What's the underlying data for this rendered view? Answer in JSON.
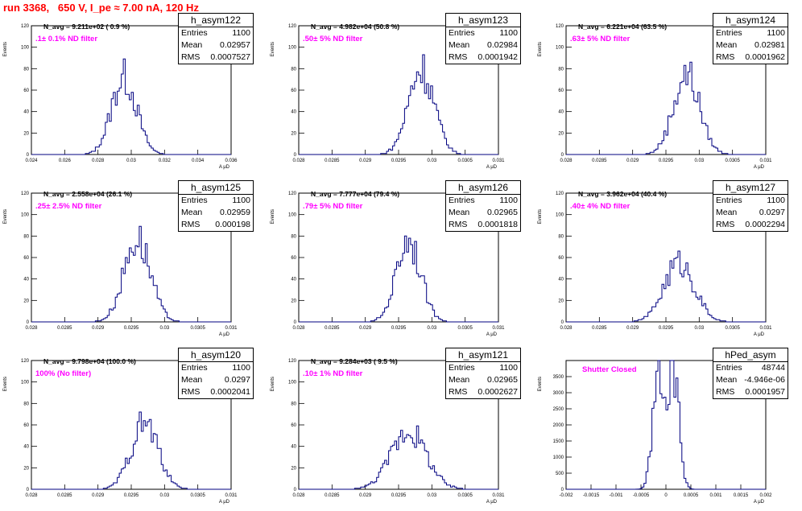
{
  "run_title": "run 3368,   650 V, I_pe ≈ 7.00 nA, 120 Hz",
  "colors": {
    "title": "#ff0000",
    "filter_text": "#ff00ff",
    "hist_line": "#000080"
  },
  "chart_data": [
    {
      "type": "bar",
      "title": "h_asym122",
      "stats": {
        "entries_label": "Entries",
        "entries": "1100",
        "mean_label": "Mean",
        "mean": "0.02957",
        "rms_label": "RMS",
        "rms": "0.0007527"
      },
      "navg_text": "N_avg = 9.211e+02 ( 0.9 %)",
      "filter_text": ".1± 0.1% ND filter",
      "ylabel": "Events",
      "xlabel": "A μD",
      "xlim": [
        0.024,
        0.036
      ],
      "ylim": [
        0,
        120
      ],
      "xticks": [
        "0.024",
        "0.026",
        "0.028",
        "0.03",
        "0.032",
        "0.034",
        "0.036"
      ],
      "yticks": [
        "0",
        "20",
        "40",
        "60",
        "80",
        "100",
        "120"
      ],
      "dist": {
        "mean": 0.02957,
        "sigma": 0.00075,
        "peak": 72
      }
    },
    {
      "type": "bar",
      "title": "h_asym123",
      "stats": {
        "entries_label": "Entries",
        "entries": "1100",
        "mean_label": "Mean",
        "mean": "0.02984",
        "rms_label": "RMS",
        "rms": "0.0001942"
      },
      "navg_text": "N_avg = 4.982e+04 (50.8 %)",
      "filter_text": ".50± 5% ND filter",
      "ylabel": "Events",
      "xlabel": "A μD",
      "xlim": [
        0.028,
        0.031
      ],
      "ylim": [
        0,
        120
      ],
      "xticks": [
        "0.028",
        "0.0285",
        "0.029",
        "0.0295",
        "0.03",
        "0.0305",
        "0.031"
      ],
      "yticks": [
        "0",
        "20",
        "40",
        "60",
        "80",
        "100",
        "120"
      ],
      "dist": {
        "mean": 0.02984,
        "sigma": 0.000194,
        "peak": 80
      }
    },
    {
      "type": "bar",
      "title": "h_asym124",
      "stats": {
        "entries_label": "Entries",
        "entries": "1100",
        "mean_label": "Mean",
        "mean": "0.02981",
        "rms_label": "RMS",
        "rms": "0.0001962"
      },
      "navg_text": "N_avg = 6.221e+04 (63.5 %)",
      "filter_text": ".63± 5% ND filter",
      "ylabel": "Events",
      "xlabel": "A μD",
      "xlim": [
        0.028,
        0.031
      ],
      "ylim": [
        0,
        120
      ],
      "xticks": [
        "0.028",
        "0.0285",
        "0.029",
        "0.0295",
        "0.03",
        "0.0305",
        "0.031"
      ],
      "yticks": [
        "0",
        "20",
        "40",
        "60",
        "80",
        "100",
        "120"
      ],
      "dist": {
        "mean": 0.02981,
        "sigma": 0.000196,
        "peak": 75
      }
    },
    {
      "type": "bar",
      "title": "h_asym125",
      "stats": {
        "entries_label": "Entries",
        "entries": "1100",
        "mean_label": "Mean",
        "mean": "0.02959",
        "rms_label": "RMS",
        "rms": "0.000198"
      },
      "navg_text": "N_avg = 2.558e+04 (26.1 %)",
      "filter_text": ".25± 2.5% ND filter",
      "ylabel": "Events",
      "xlabel": "A μD",
      "xlim": [
        0.028,
        0.031
      ],
      "ylim": [
        0,
        120
      ],
      "xticks": [
        "0.028",
        "0.0285",
        "0.029",
        "0.0295",
        "0.03",
        "0.0305",
        "0.031"
      ],
      "yticks": [
        "0",
        "20",
        "40",
        "60",
        "80",
        "100",
        "120"
      ],
      "dist": {
        "mean": 0.02959,
        "sigma": 0.000198,
        "peak": 78
      }
    },
    {
      "type": "bar",
      "title": "h_asym126",
      "stats": {
        "entries_label": "Entries",
        "entries": "1100",
        "mean_label": "Mean",
        "mean": "0.02965",
        "rms_label": "RMS",
        "rms": "0.0001818"
      },
      "navg_text": "N_avg = 7.777e+04 (79.4 %)",
      "filter_text": ".79± 5% ND filter",
      "ylabel": "Events",
      "xlabel": "A μD",
      "xlim": [
        0.028,
        0.031
      ],
      "ylim": [
        0,
        120
      ],
      "xticks": [
        "0.028",
        "0.0285",
        "0.029",
        "0.0295",
        "0.03",
        "0.0305",
        "0.031"
      ],
      "yticks": [
        "0",
        "20",
        "40",
        "60",
        "80",
        "100",
        "120"
      ],
      "dist": {
        "mean": 0.02965,
        "sigma": 0.000182,
        "peak": 78
      }
    },
    {
      "type": "bar",
      "title": "h_asym127",
      "stats": {
        "entries_label": "Entries",
        "entries": "1100",
        "mean_label": "Mean",
        "mean": "0.0297",
        "rms_label": "RMS",
        "rms": "0.0002294"
      },
      "navg_text": "N_avg = 3.962e+04 (40.4 %)",
      "filter_text": ".40± 4% ND filter",
      "ylabel": "Events",
      "xlabel": "A μD",
      "xlim": [
        0.028,
        0.031
      ],
      "ylim": [
        0,
        120
      ],
      "xticks": [
        "0.028",
        "0.0285",
        "0.029",
        "0.0295",
        "0.03",
        "0.0305",
        "0.031"
      ],
      "yticks": [
        "0",
        "20",
        "40",
        "60",
        "80",
        "100",
        "120"
      ],
      "dist": {
        "mean": 0.0297,
        "sigma": 0.000229,
        "peak": 55
      }
    },
    {
      "type": "bar",
      "title": "h_asym120",
      "stats": {
        "entries_label": "Entries",
        "entries": "1100",
        "mean_label": "Mean",
        "mean": "0.0297",
        "rms_label": "RMS",
        "rms": "0.0002041"
      },
      "navg_text": "N_avg = 9.798e+04 (100.0 %)",
      "filter_text": "100% (No filter)",
      "ylabel": "Events",
      "xlabel": "A μD",
      "xlim": [
        0.028,
        0.031
      ],
      "ylim": [
        0,
        120
      ],
      "xticks": [
        "0.028",
        "0.0285",
        "0.029",
        "0.0295",
        "0.03",
        "0.0305",
        "0.031"
      ],
      "yticks": [
        "0",
        "20",
        "40",
        "60",
        "80",
        "100",
        "120"
      ],
      "dist": {
        "mean": 0.0297,
        "sigma": 0.000204,
        "peak": 62
      }
    },
    {
      "type": "bar",
      "title": "h_asym121",
      "stats": {
        "entries_label": "Entries",
        "entries": "1100",
        "mean_label": "Mean",
        "mean": "0.02965",
        "rms_label": "RMS",
        "rms": "0.0002627"
      },
      "navg_text": "N_avg = 9.284e+03 ( 9.5 %)",
      "filter_text": ".10± 1% ND filter",
      "ylabel": "Events",
      "xlabel": "A μD",
      "xlim": [
        0.028,
        0.031
      ],
      "ylim": [
        0,
        120
      ],
      "xticks": [
        "0.028",
        "0.0285",
        "0.029",
        "0.0295",
        "0.03",
        "0.0305",
        "0.031"
      ],
      "yticks": [
        "0",
        "20",
        "40",
        "60",
        "80",
        "100",
        "120"
      ],
      "dist": {
        "mean": 0.02965,
        "sigma": 0.000263,
        "peak": 55
      }
    },
    {
      "type": "bar",
      "title": "hPed_asym",
      "stats": {
        "entries_label": "Entries",
        "entries": "48744",
        "mean_label": "Mean",
        "mean": "-4.946e-06",
        "rms_label": "RMS",
        "rms": "0.0001957"
      },
      "navg_text": "",
      "filter_text": "Shutter Closed",
      "ylabel": "Events",
      "xlabel": "A μD",
      "xlim": [
        -0.002,
        0.002
      ],
      "ylim": [
        0,
        4000
      ],
      "xticks": [
        "-0.002",
        "-0.0015",
        "-0.001",
        "-0.0005",
        "0",
        "0.0005",
        "0.001",
        "0.0015",
        "0.002"
      ],
      "yticks": [
        "0",
        "500",
        "1000",
        "1500",
        "2000",
        "2500",
        "3000",
        "3500"
      ],
      "dist": {
        "mean": -4.9e-06,
        "sigma": 0.000196,
        "peak": 3800,
        "bimodal": true
      }
    }
  ]
}
